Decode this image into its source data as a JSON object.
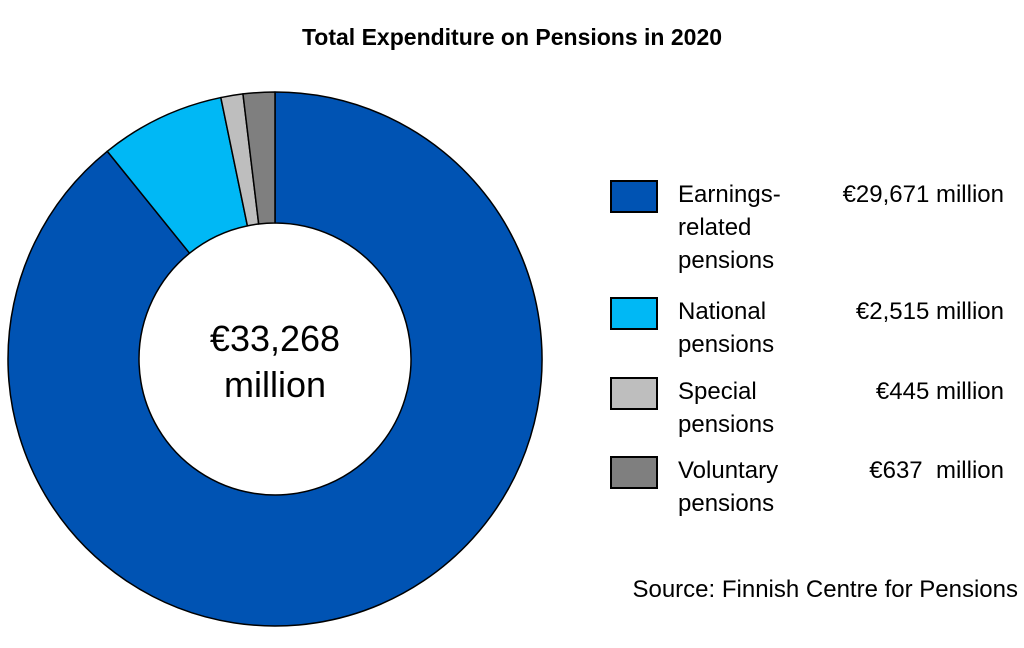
{
  "chart_data": {
    "type": "pie",
    "donut": true,
    "title": "Total Expenditure on Pensions in 2020",
    "center_label": [
      "€33,268",
      "million"
    ],
    "series": [
      {
        "label": "Earnings-related pensions",
        "label_lines": [
          "Earnings-",
          "related",
          "pensions"
        ],
        "value": 29671,
        "value_label": "€29,671 million",
        "color": "#0053B3"
      },
      {
        "label": "National pensions",
        "label_lines": [
          "National",
          "pensions"
        ],
        "value": 2515,
        "value_label": "€2,515 million",
        "color": "#00B8F5"
      },
      {
        "label": "Special pensions",
        "label_lines": [
          "Special",
          "pensions"
        ],
        "value": 445,
        "value_label": "€445 million",
        "color": "#BEBEBE"
      },
      {
        "label": "Voluntary pensions",
        "label_lines": [
          "Voluntary",
          "pensions"
        ],
        "value": 637,
        "value_label": "€637  million",
        "color": "#7F7F7F"
      }
    ],
    "legend_position": "right",
    "source": "Source: Finnish Centre for Pensions"
  }
}
